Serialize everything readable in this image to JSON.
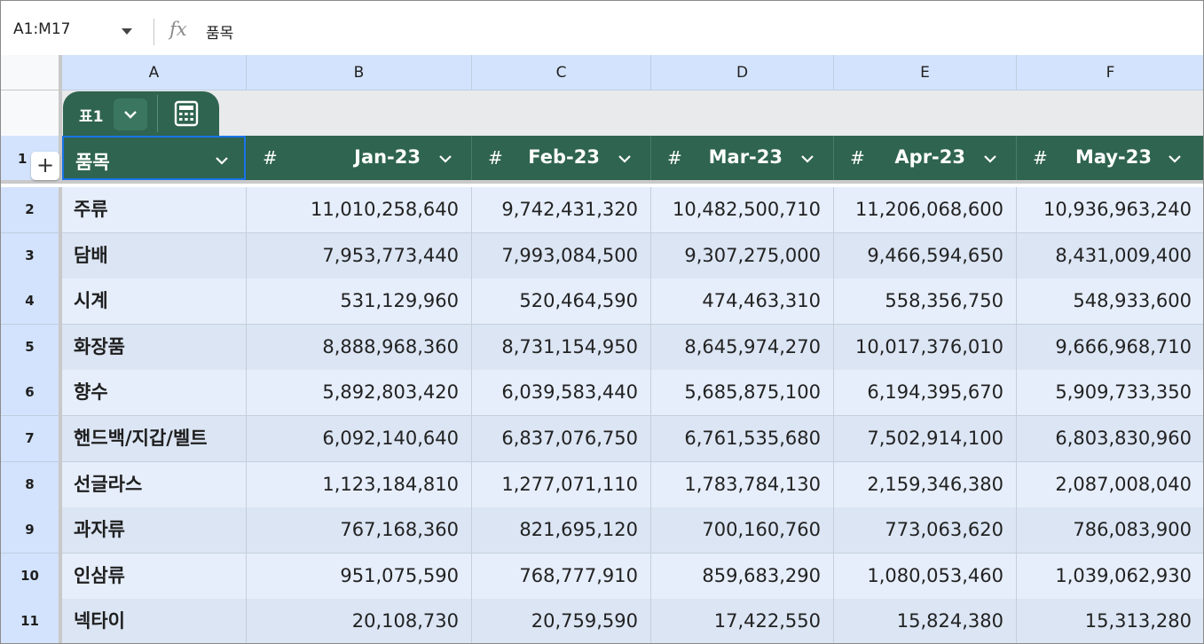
{
  "formula_bar": {
    "name_box": "A1:M17",
    "fx_label": "fx",
    "formula_value": "품목"
  },
  "columns": [
    "A",
    "B",
    "C",
    "D",
    "E",
    "F"
  ],
  "table_chip": {
    "name": "표1"
  },
  "header": {
    "row_number": "1",
    "add_label": "+",
    "type_symbol": "#",
    "item_label": "품목",
    "months": [
      "Jan-23",
      "Feb-23",
      "Mar-23",
      "Apr-23",
      "May-23"
    ]
  },
  "rows": [
    {
      "n": "2",
      "item": "주류",
      "values": [
        "11,010,258,640",
        "9,742,431,320",
        "10,482,500,710",
        "11,206,068,600",
        "10,936,963,240"
      ]
    },
    {
      "n": "3",
      "item": "담배",
      "values": [
        "7,953,773,440",
        "7,993,084,500",
        "9,307,275,000",
        "9,466,594,650",
        "8,431,009,400"
      ]
    },
    {
      "n": "4",
      "item": "시계",
      "values": [
        "531,129,960",
        "520,464,590",
        "474,463,310",
        "558,356,750",
        "548,933,600"
      ]
    },
    {
      "n": "5",
      "item": "화장품",
      "values": [
        "8,888,968,360",
        "8,731,154,950",
        "8,645,974,270",
        "10,017,376,010",
        "9,666,968,710"
      ]
    },
    {
      "n": "6",
      "item": "향수",
      "values": [
        "5,892,803,420",
        "6,039,583,440",
        "5,685,875,100",
        "6,194,395,670",
        "5,909,733,350"
      ]
    },
    {
      "n": "7",
      "item": "핸드백/지갑/벨트",
      "values": [
        "6,092,140,640",
        "6,837,076,750",
        "6,761,535,680",
        "7,502,914,100",
        "6,803,830,960"
      ]
    },
    {
      "n": "8",
      "item": "선글라스",
      "values": [
        "1,123,184,810",
        "1,277,071,110",
        "1,783,784,130",
        "2,159,346,380",
        "2,087,008,040"
      ]
    },
    {
      "n": "9",
      "item": "과자류",
      "values": [
        "767,168,360",
        "821,695,120",
        "700,160,760",
        "773,063,620",
        "786,083,900"
      ]
    },
    {
      "n": "10",
      "item": "인삼류",
      "values": [
        "951,075,590",
        "768,777,910",
        "859,683,290",
        "1,080,053,460",
        "1,039,062,930"
      ]
    },
    {
      "n": "11",
      "item": "넥타이",
      "values": [
        "20,108,730",
        "20,759,590",
        "17,422,550",
        "15,824,380",
        "15,313,280"
      ]
    }
  ]
}
